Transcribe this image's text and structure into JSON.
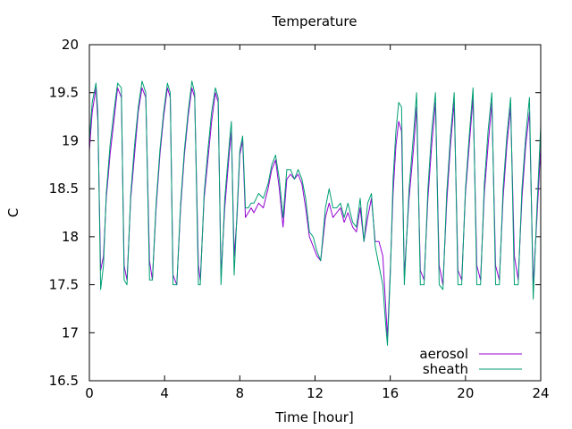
{
  "chart_data": {
    "type": "line",
    "title": "Temperature",
    "xlabel": "Time [hour]",
    "ylabel": "C",
    "xlim": [
      0,
      24
    ],
    "ylim": [
      16.5,
      20
    ],
    "x_ticks": [
      0,
      4,
      8,
      12,
      16,
      20,
      24
    ],
    "y_ticks": [
      16.5,
      17,
      17.5,
      18,
      18.5,
      19,
      19.5,
      20
    ],
    "y_tick_labels": [
      "16.5",
      "17",
      "17.5",
      "18",
      "18.5",
      "19",
      "19.5",
      "20"
    ],
    "grid": false,
    "legend_position": "bottom-right",
    "series": [
      {
        "name": "aerosol",
        "color": "#9400d3",
        "x": [
          0.0,
          0.15,
          0.35,
          0.45,
          0.6,
          0.75,
          0.9,
          1.1,
          1.3,
          1.5,
          1.7,
          1.85,
          2.0,
          2.2,
          2.4,
          2.6,
          2.8,
          3.0,
          3.2,
          3.35,
          3.55,
          3.75,
          3.95,
          4.15,
          4.3,
          4.45,
          4.65,
          4.85,
          5.05,
          5.25,
          5.45,
          5.6,
          5.8,
          5.9,
          6.1,
          6.3,
          6.5,
          6.7,
          6.85,
          7.0,
          7.2,
          7.45,
          7.55,
          7.7,
          7.85,
          8.0,
          8.15,
          8.3,
          8.45,
          8.6,
          8.75,
          9.0,
          9.25,
          9.5,
          9.7,
          9.9,
          10.1,
          10.3,
          10.5,
          10.7,
          10.9,
          11.1,
          11.3,
          11.5,
          11.7,
          11.9,
          12.1,
          12.3,
          12.55,
          12.75,
          12.95,
          13.15,
          13.35,
          13.55,
          13.75,
          14.0,
          14.2,
          14.4,
          14.6,
          14.8,
          15.0,
          15.2,
          15.4,
          15.6,
          15.75,
          15.85,
          16.0,
          16.15,
          16.3,
          16.45,
          16.6,
          16.75,
          17.0,
          17.25,
          17.4,
          17.6,
          17.8,
          18.0,
          18.2,
          18.4,
          18.6,
          18.8,
          19.0,
          19.2,
          19.4,
          19.6,
          19.8,
          20.0,
          20.2,
          20.4,
          20.6,
          20.8,
          21.0,
          21.2,
          21.4,
          21.6,
          21.8,
          22.0,
          22.2,
          22.4,
          22.6,
          22.8,
          23.0,
          23.2,
          23.4,
          23.6,
          23.8,
          24.0
        ],
        "values": [
          18.9,
          19.3,
          19.55,
          19.2,
          17.65,
          17.8,
          18.4,
          18.85,
          19.2,
          19.55,
          19.45,
          17.7,
          17.55,
          18.4,
          18.85,
          19.3,
          19.55,
          19.45,
          17.75,
          17.55,
          18.3,
          18.85,
          19.25,
          19.55,
          19.45,
          17.6,
          17.5,
          18.3,
          18.85,
          19.25,
          19.55,
          19.45,
          17.7,
          17.55,
          18.4,
          18.8,
          19.2,
          19.5,
          19.4,
          17.6,
          18.3,
          18.9,
          19.1,
          17.8,
          18.2,
          18.85,
          19.0,
          18.2,
          18.25,
          18.3,
          18.25,
          18.35,
          18.3,
          18.5,
          18.7,
          18.8,
          18.5,
          18.1,
          18.6,
          18.65,
          18.6,
          18.65,
          18.55,
          18.3,
          18.0,
          17.9,
          17.8,
          17.75,
          18.2,
          18.35,
          18.2,
          18.25,
          18.3,
          18.15,
          18.25,
          18.1,
          18.05,
          18.3,
          17.95,
          18.2,
          18.4,
          17.95,
          17.95,
          17.8,
          17.3,
          16.95,
          17.65,
          18.45,
          18.95,
          19.2,
          19.1,
          17.6,
          18.4,
          18.95,
          19.35,
          17.65,
          17.55,
          18.4,
          18.95,
          19.4,
          17.7,
          17.5,
          18.35,
          18.95,
          19.4,
          17.65,
          17.55,
          18.45,
          18.95,
          19.45,
          17.7,
          17.55,
          18.45,
          18.95,
          19.4,
          17.7,
          17.55,
          18.4,
          18.95,
          19.35,
          17.8,
          17.55,
          18.4,
          18.95,
          19.3,
          17.5,
          18.2,
          18.95
        ]
      },
      {
        "name": "sheath",
        "color": "#009e73",
        "x": [
          0.0,
          0.15,
          0.35,
          0.45,
          0.6,
          0.75,
          0.9,
          1.1,
          1.3,
          1.5,
          1.7,
          1.85,
          2.0,
          2.2,
          2.4,
          2.6,
          2.8,
          3.0,
          3.2,
          3.35,
          3.55,
          3.75,
          3.95,
          4.15,
          4.3,
          4.45,
          4.65,
          4.85,
          5.05,
          5.25,
          5.45,
          5.6,
          5.8,
          5.9,
          6.1,
          6.3,
          6.5,
          6.7,
          6.85,
          7.0,
          7.2,
          7.45,
          7.55,
          7.7,
          7.85,
          8.0,
          8.15,
          8.3,
          8.45,
          8.6,
          8.75,
          9.0,
          9.25,
          9.5,
          9.7,
          9.9,
          10.1,
          10.3,
          10.5,
          10.7,
          10.9,
          11.1,
          11.3,
          11.5,
          11.7,
          11.9,
          12.1,
          12.3,
          12.55,
          12.75,
          12.95,
          13.15,
          13.35,
          13.55,
          13.75,
          14.0,
          14.2,
          14.4,
          14.6,
          14.8,
          15.0,
          15.2,
          15.4,
          15.6,
          15.75,
          15.85,
          16.0,
          16.15,
          16.3,
          16.45,
          16.6,
          16.75,
          17.0,
          17.25,
          17.4,
          17.6,
          17.8,
          18.0,
          18.2,
          18.4,
          18.6,
          18.8,
          19.0,
          19.2,
          19.4,
          19.6,
          19.8,
          20.0,
          20.2,
          20.4,
          20.6,
          20.8,
          21.0,
          21.2,
          21.4,
          21.6,
          21.8,
          22.0,
          22.2,
          22.4,
          22.6,
          22.8,
          23.0,
          23.2,
          23.4,
          23.6,
          23.8,
          24.0
        ],
        "values": [
          19.0,
          19.4,
          19.6,
          19.3,
          17.45,
          17.7,
          18.45,
          18.95,
          19.3,
          19.6,
          19.55,
          17.55,
          17.5,
          18.45,
          18.95,
          19.35,
          19.62,
          19.5,
          17.55,
          17.55,
          18.35,
          18.9,
          19.3,
          19.6,
          19.5,
          17.5,
          17.5,
          18.35,
          18.9,
          19.3,
          19.62,
          19.5,
          17.5,
          17.5,
          18.45,
          18.9,
          19.3,
          19.55,
          19.45,
          17.5,
          18.4,
          19.0,
          19.2,
          17.6,
          18.25,
          18.9,
          19.05,
          18.3,
          18.3,
          18.35,
          18.35,
          18.45,
          18.4,
          18.55,
          18.75,
          18.85,
          18.6,
          18.2,
          18.7,
          18.7,
          18.6,
          18.7,
          18.6,
          18.4,
          18.05,
          18.0,
          17.85,
          17.75,
          18.3,
          18.5,
          18.3,
          18.3,
          18.35,
          18.2,
          18.35,
          18.15,
          18.1,
          18.4,
          17.95,
          18.35,
          18.45,
          17.9,
          17.7,
          17.5,
          17.1,
          16.87,
          17.6,
          18.6,
          19.1,
          19.4,
          19.35,
          17.5,
          18.5,
          19.1,
          19.5,
          17.5,
          17.5,
          18.5,
          19.1,
          19.5,
          17.5,
          17.45,
          18.45,
          19.05,
          19.5,
          17.5,
          17.5,
          18.5,
          19.05,
          19.55,
          17.5,
          17.5,
          18.55,
          19.1,
          19.5,
          17.5,
          17.5,
          18.5,
          19.05,
          19.45,
          17.5,
          17.5,
          18.5,
          19.05,
          19.45,
          17.35,
          18.3,
          19.15
        ]
      }
    ]
  }
}
